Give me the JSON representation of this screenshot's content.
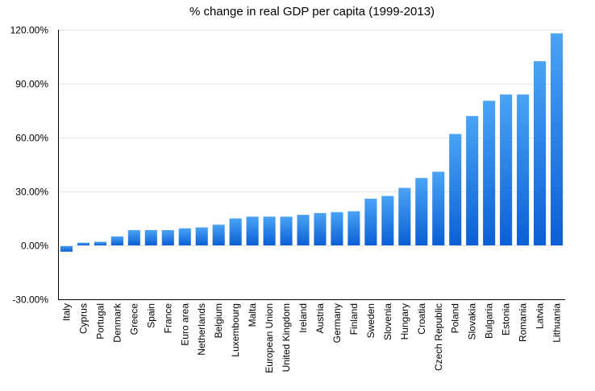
{
  "chart_data": {
    "type": "bar",
    "title": "% change in real GDP per capita (1999-2013)",
    "xlabel": "",
    "ylabel": "",
    "ylim": [
      -30,
      120
    ],
    "yticks": [
      -30,
      0,
      30,
      60,
      90,
      120
    ],
    "ytick_labels": [
      "-30.00%",
      "0.00%",
      "30.00%",
      "60.00%",
      "90.00%",
      "120.00%"
    ],
    "grid": true,
    "bar_color_top": "#4aa3f5",
    "bar_color_bottom": "#0c5fd4",
    "categories": [
      "Italy",
      "Cyprus",
      "Portugal",
      "Denmark",
      "Greece",
      "Spain",
      "France",
      "Euro area",
      "Netherlands",
      "Belgium",
      "Luxembourg",
      "Malta",
      "European Union",
      "United Kingdom",
      "Ireland",
      "Austria",
      "Germany",
      "Finland",
      "Sweden",
      "Slovenia",
      "Hungary",
      "Croatia",
      "Czech Republic",
      "Poland",
      "Slovakia",
      "Bulgaria",
      "Estonia",
      "Romania",
      "Latvia",
      "Lithuania"
    ],
    "values": [
      -3.5,
      1.5,
      2.0,
      5.0,
      8.5,
      8.5,
      8.5,
      9.5,
      10.0,
      11.5,
      15.0,
      16.0,
      16.0,
      16.0,
      17.0,
      18.0,
      18.5,
      19.0,
      26.0,
      27.5,
      32.0,
      37.5,
      41.0,
      62.0,
      72.0,
      80.5,
      84.0,
      84.0,
      102.5,
      118.0
    ]
  }
}
